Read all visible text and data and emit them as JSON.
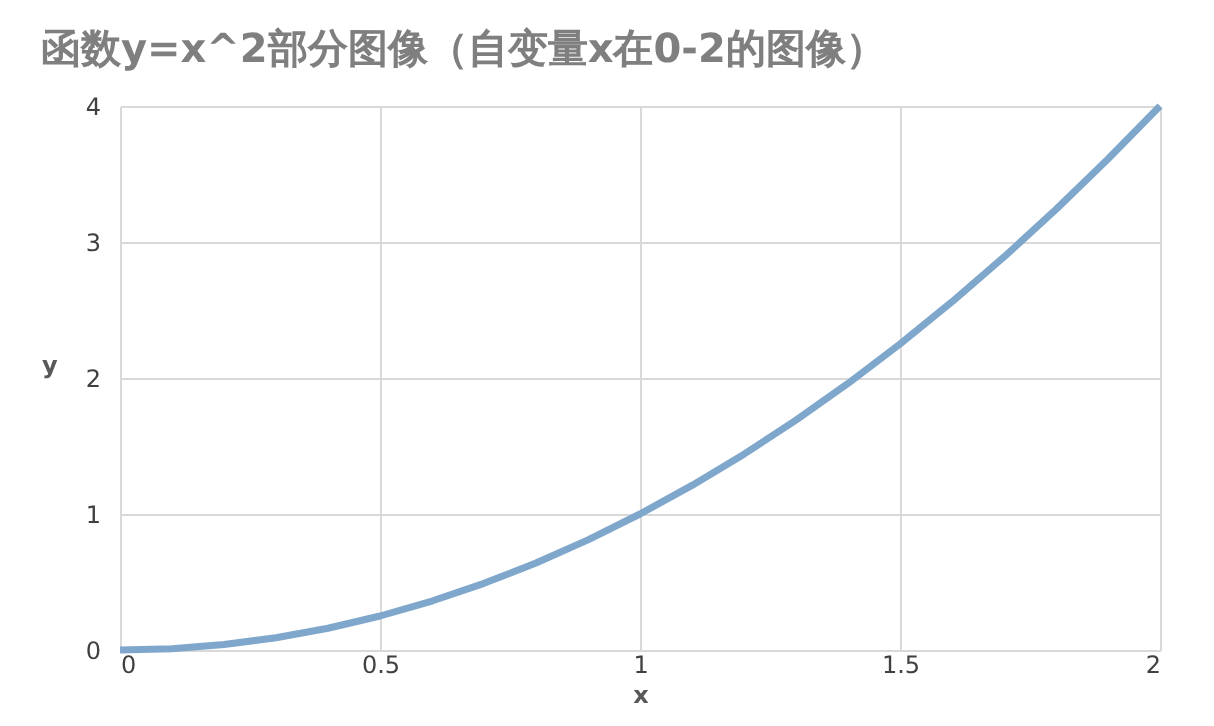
{
  "chart_data": {
    "type": "line",
    "title": "函数y=x^2部分图像（自变量x在0-2的图像）",
    "xlabel": "x",
    "ylabel": "y",
    "x": [
      0,
      0.1,
      0.2,
      0.3,
      0.4,
      0.5,
      0.6,
      0.7,
      0.8,
      0.9,
      1,
      1.1,
      1.2,
      1.3,
      1.4,
      1.5,
      1.6,
      1.7,
      1.8,
      1.9,
      2
    ],
    "series": [
      {
        "color": "#7fa7cc",
        "values": [
          0,
          0.01,
          0.04,
          0.09,
          0.16,
          0.25,
          0.36,
          0.49,
          0.64,
          0.81,
          1,
          1.21,
          1.44,
          1.69,
          1.96,
          2.25,
          2.56,
          2.89,
          3.24,
          3.61,
          4
        ]
      }
    ],
    "xlim": [
      0,
      2
    ],
    "xticks": [
      0,
      0.5,
      1,
      1.5,
      2
    ],
    "ylim": [
      0,
      4
    ],
    "yticks": [
      0,
      1,
      2,
      3,
      4
    ],
    "grid": true,
    "marker": "none",
    "line_style": "solid"
  }
}
